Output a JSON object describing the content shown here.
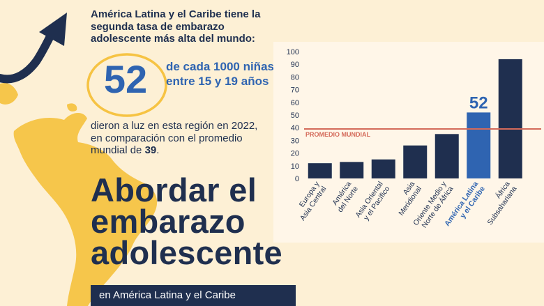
{
  "header": {
    "intro": "América Latina y el Caribe tiene la segunda tasa de embarazo adolescente más alta del mundo:",
    "big_number": "52",
    "highlight": "de cada 1000 niñas entre 15 y 19 años",
    "detail_prefix": "dieron a luz en esta región en 2022, en comparación con el promedio mundial de ",
    "detail_value": "39",
    "detail_suffix": "."
  },
  "title": "Abordar el embarazo adolescente",
  "banner": "en América Latina y el Caribe",
  "colors": {
    "navy": "#1f2f4f",
    "highlight_blue": "#2f64b1",
    "reference_line": "#d46a5a",
    "map_yellow": "#f6c343",
    "background": "#fdf0d5"
  },
  "icons": [
    "trend-up-arrow-icon",
    "latin-america-map-icon"
  ],
  "chart_data": {
    "type": "bar",
    "categories": [
      "Europa y Asia Central",
      "América del Norte",
      "Asia Oriental y el Pacífico",
      "Asia Meridional",
      "Oriente Medio y Norte de África",
      "América Latina y el Caribe",
      "África Subsahariana"
    ],
    "category_lines": [
      [
        "Europa y",
        "Asia Central"
      ],
      [
        "América",
        "del Norte"
      ],
      [
        "Asia Oriental",
        "y el Pacífico"
      ],
      [
        "Asia",
        "Meridional"
      ],
      [
        "Oriente Medio y",
        "Norte de África"
      ],
      [
        "América Latina",
        "y el Caribe"
      ],
      [
        "África",
        "Subsahariana"
      ]
    ],
    "values": [
      12,
      13,
      15,
      26,
      35,
      52,
      94
    ],
    "highlight_index": 5,
    "highlight_label": "52",
    "ylim": [
      0,
      100
    ],
    "yticks": [
      0,
      10,
      20,
      30,
      40,
      50,
      60,
      70,
      80,
      90,
      100
    ],
    "reference_line": {
      "value": 39,
      "label": "PROMEDIO MUNDIAL"
    },
    "grid": false,
    "xlabel": "",
    "ylabel": ""
  }
}
